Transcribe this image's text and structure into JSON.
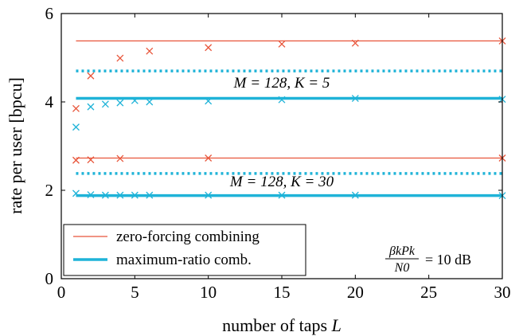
{
  "chart_data": {
    "type": "line",
    "xlabel": "number of taps",
    "xlabel_var": "L",
    "ylabel": "rate per user [bpcu]",
    "xlim": [
      0,
      30
    ],
    "ylim": [
      0,
      6
    ],
    "xticks": [
      0,
      5,
      10,
      15,
      20,
      25,
      30
    ],
    "yticks": [
      0,
      2,
      4,
      6
    ],
    "grid": false,
    "legend_placement": "bottom-left",
    "colors": {
      "zf": "#e8553a",
      "mr": "#1fb3d8"
    },
    "legend": [
      {
        "label": "zero-forcing combining",
        "color": "#e8553a",
        "style": "thin"
      },
      {
        "label": "maximum-ratio comb.",
        "color": "#1fb3d8",
        "style": "thick"
      }
    ],
    "annotations": {
      "k5": "M = 128, K = 5",
      "k30": "M = 128, K = 30",
      "snr_num": "βkPk",
      "snr_den": "N0",
      "snr_val": "= 10 dB"
    },
    "reference_lines": [
      {
        "group": "K=5",
        "scheme": "zf",
        "style": "solid-thin",
        "y": 5.38
      },
      {
        "group": "K=5",
        "scheme": "mr",
        "style": "dotted-thick",
        "y": 4.7
      },
      {
        "group": "K=5",
        "scheme": "mr",
        "style": "solid-thick",
        "y": 4.08
      },
      {
        "group": "K=30",
        "scheme": "zf",
        "style": "solid-thin",
        "y": 2.73
      },
      {
        "group": "K=30",
        "scheme": "mr",
        "style": "dotted-thick",
        "y": 2.38
      },
      {
        "group": "K=30",
        "scheme": "mr",
        "style": "solid-thick",
        "y": 1.88
      }
    ],
    "series": [
      {
        "scheme": "zf",
        "group": "K=5",
        "x": [
          1,
          2,
          4,
          6,
          10,
          15,
          20,
          30
        ],
        "y": [
          3.85,
          4.59,
          4.99,
          5.15,
          5.23,
          5.31,
          5.33,
          5.38
        ]
      },
      {
        "scheme": "mr",
        "group": "K=5",
        "x": [
          1,
          2,
          3,
          4,
          5,
          6,
          10,
          15,
          20,
          30
        ],
        "y": [
          3.43,
          3.89,
          3.95,
          3.98,
          4.03,
          4.0,
          4.02,
          4.05,
          4.08,
          4.06
        ]
      },
      {
        "scheme": "zf",
        "group": "K=30",
        "x": [
          1,
          2,
          4,
          10,
          30
        ],
        "y": [
          2.68,
          2.69,
          2.72,
          2.73,
          2.73
        ]
      },
      {
        "scheme": "mr",
        "group": "K=30",
        "x": [
          1,
          2,
          3,
          4,
          5,
          6,
          10,
          15,
          20,
          30
        ],
        "y": [
          1.93,
          1.9,
          1.89,
          1.89,
          1.89,
          1.89,
          1.89,
          1.89,
          1.89,
          1.88
        ]
      }
    ]
  }
}
